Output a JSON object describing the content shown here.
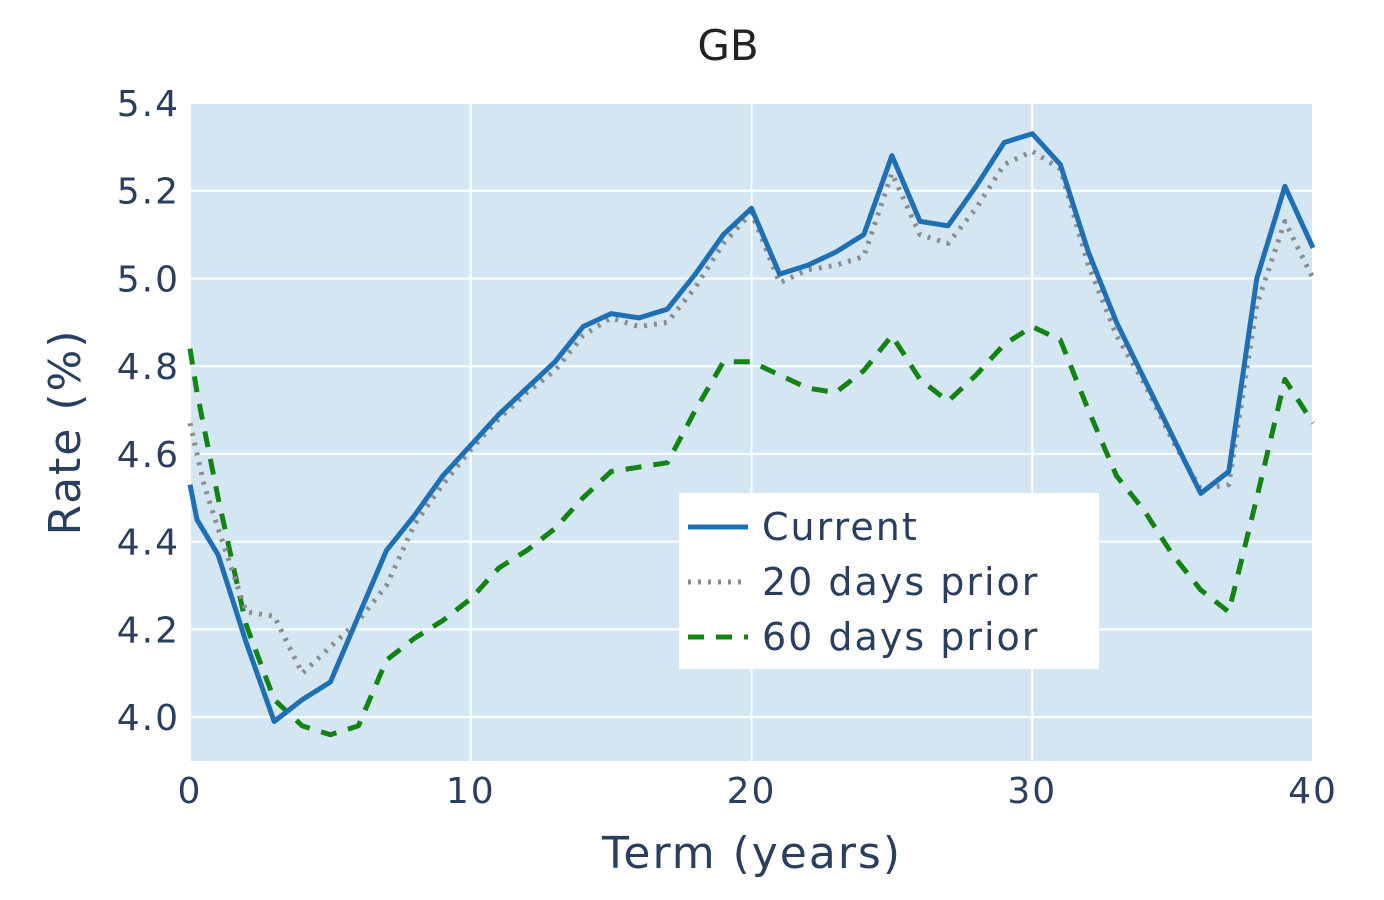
{
  "chart_data": {
    "type": "line",
    "title": "GB",
    "xlabel": "Term (years)",
    "ylabel": "Rate (%)",
    "xlim": [
      0,
      40
    ],
    "ylim": [
      3.9,
      5.4
    ],
    "xticks": [
      0,
      10,
      20,
      30,
      40
    ],
    "yticks": [
      4.0,
      4.2,
      4.4,
      4.6,
      4.8,
      5.0,
      5.2,
      5.4
    ],
    "ytick_labels": [
      "4.0",
      "4.2",
      "4.4",
      "4.6",
      "4.8",
      "5.0",
      "5.2",
      "5.4"
    ],
    "grid": true,
    "legend_position": "center-right",
    "plot_background": "#d5e6f3",
    "series": [
      {
        "name": "Current",
        "color": "#1f6fb4",
        "dash": "solid",
        "x": [
          0,
          0.25,
          1,
          2,
          3,
          4,
          5,
          6,
          7,
          8,
          9,
          10,
          11,
          12,
          13,
          14,
          15,
          16,
          17,
          18,
          19,
          20,
          21,
          22,
          23,
          24,
          25,
          26,
          27,
          28,
          29,
          30,
          31,
          32,
          33,
          34,
          35,
          36,
          37,
          38,
          39,
          40
        ],
        "y": [
          4.53,
          4.45,
          4.37,
          4.17,
          3.99,
          4.04,
          4.08,
          4.23,
          4.38,
          4.46,
          4.55,
          4.62,
          4.69,
          4.75,
          4.81,
          4.89,
          4.92,
          4.91,
          4.93,
          5.01,
          5.1,
          5.16,
          5.01,
          5.03,
          5.06,
          5.1,
          5.28,
          5.13,
          5.12,
          5.21,
          5.31,
          5.33,
          5.26,
          5.06,
          4.9,
          4.77,
          4.64,
          4.51,
          4.56,
          5.0,
          5.21,
          5.07
        ]
      },
      {
        "name": "20 days prior",
        "color": "#8c8c8c",
        "dash": "dot",
        "x": [
          0,
          0.5,
          1,
          2,
          3,
          4,
          5,
          6,
          7,
          8,
          9,
          10,
          11,
          12,
          13,
          14,
          15,
          16,
          17,
          18,
          19,
          20,
          21,
          22,
          23,
          24,
          25,
          26,
          27,
          28,
          29,
          30,
          31,
          32,
          33,
          34,
          35,
          36,
          37,
          38,
          39,
          40
        ],
        "y": [
          4.67,
          4.53,
          4.43,
          4.24,
          4.23,
          4.1,
          4.16,
          4.22,
          4.3,
          4.44,
          4.53,
          4.61,
          4.68,
          4.74,
          4.79,
          4.87,
          4.91,
          4.89,
          4.9,
          4.98,
          5.08,
          5.15,
          4.99,
          5.02,
          5.03,
          5.05,
          5.24,
          5.1,
          5.08,
          5.16,
          5.26,
          5.29,
          5.25,
          5.03,
          4.87,
          4.76,
          4.63,
          4.52,
          4.53,
          4.94,
          5.13,
          5.0
        ]
      },
      {
        "name": "60 days prior",
        "color": "#138313",
        "dash": "dash",
        "x": [
          0,
          0.25,
          1,
          2,
          3,
          4,
          5,
          6,
          7,
          8,
          9,
          10,
          11,
          12,
          13,
          14,
          15,
          16,
          17,
          18,
          19,
          20,
          21,
          22,
          23,
          24,
          25,
          26,
          27,
          28,
          29,
          30,
          31,
          32,
          33,
          34,
          35,
          36,
          37,
          38,
          39,
          40
        ],
        "y": [
          4.84,
          4.74,
          4.5,
          4.21,
          4.04,
          3.98,
          3.96,
          3.98,
          4.13,
          4.18,
          4.22,
          4.27,
          4.34,
          4.38,
          4.43,
          4.5,
          4.56,
          4.57,
          4.58,
          4.7,
          4.81,
          4.81,
          4.78,
          4.75,
          4.74,
          4.79,
          4.87,
          4.77,
          4.72,
          4.78,
          4.85,
          4.89,
          4.86,
          4.7,
          4.55,
          4.47,
          4.37,
          4.29,
          4.24,
          4.5,
          4.77,
          4.67
        ]
      }
    ]
  }
}
